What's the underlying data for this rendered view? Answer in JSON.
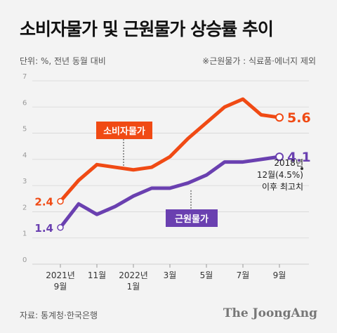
{
  "header": {
    "title": "소비자물가 및 근원물가 상승률 추이",
    "unit": "단위: %, 전년 동월 대비",
    "note": "※근원물가 : 식료품·에너지 제외"
  },
  "footer": {
    "source": "자료: 통계청·한국은행",
    "brand": "The JoongAng"
  },
  "colors": {
    "cpi": "#f04a14",
    "core": "#6a40b0",
    "grid": "#d6d6d6"
  },
  "chart_data": {
    "type": "line",
    "x": [
      "2021-09",
      "2021-10",
      "2021-11",
      "2021-12",
      "2022-01",
      "2022-02",
      "2022-03",
      "2022-04",
      "2022-05",
      "2022-06",
      "2022-07",
      "2022-08",
      "2022-09"
    ],
    "x_tick_labels": [
      {
        "x": "2021-09",
        "lines": [
          "2021년",
          "9월"
        ]
      },
      {
        "x": "2021-11",
        "lines": [
          "11월"
        ]
      },
      {
        "x": "2022-01",
        "lines": [
          "2022년",
          "1월"
        ]
      },
      {
        "x": "2022-03",
        "lines": [
          "3월"
        ]
      },
      {
        "x": "2022-05",
        "lines": [
          "5월"
        ]
      },
      {
        "x": "2022-07",
        "lines": [
          "7월"
        ]
      },
      {
        "x": "2022-09",
        "lines": [
          "9월"
        ]
      }
    ],
    "ylim": [
      0,
      7
    ],
    "y_ticks": [
      0,
      1,
      2,
      3,
      4,
      5,
      6,
      7
    ],
    "grid": true,
    "series": [
      {
        "name": "소비자물가",
        "key": "cpi",
        "values": [
          2.4,
          3.2,
          3.8,
          3.7,
          3.6,
          3.7,
          4.1,
          4.8,
          5.4,
          6.0,
          6.3,
          5.7,
          5.6
        ],
        "start_label": "2.4",
        "end_label": "5.6"
      },
      {
        "name": "근원물가",
        "key": "core",
        "values": [
          1.4,
          2.3,
          1.9,
          2.2,
          2.6,
          2.9,
          2.9,
          3.1,
          3.4,
          3.9,
          3.9,
          4.0,
          4.1
        ],
        "start_label": "1.4",
        "end_label": "4.1"
      }
    ],
    "annotation": {
      "lines": [
        "2018년",
        "12월(4.5%)",
        "이후 최고치"
      ]
    }
  }
}
